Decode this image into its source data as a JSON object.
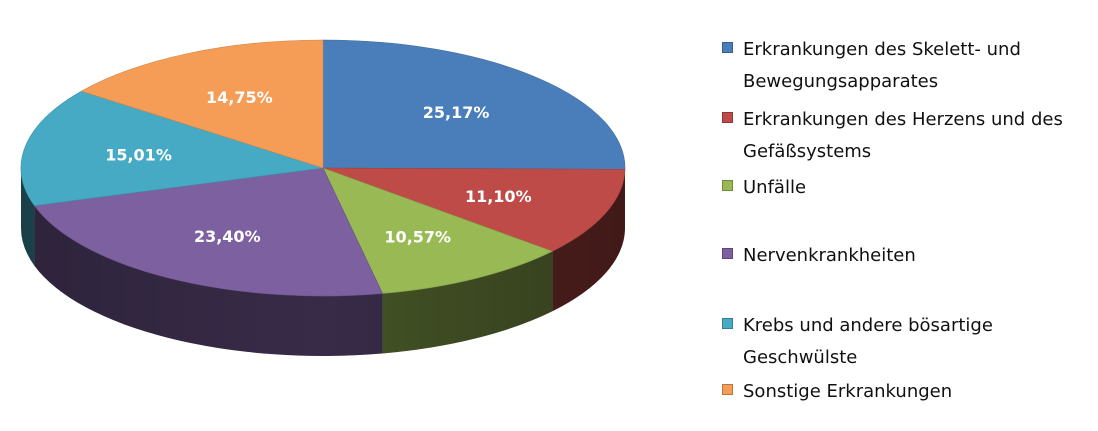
{
  "chart_data": {
    "type": "pie",
    "style": "3d",
    "categories": [
      "Erkrankungen des Skelett- und Bewegungsapparates",
      "Erkrankungen des Herzens und des Gefäßsystems",
      "Unfälle",
      "Nervenkrankheiten",
      "Krebs und andere bösartige Geschwülste",
      "Sonstige Erkrankungen"
    ],
    "values": [
      25.17,
      11.1,
      10.57,
      23.4,
      15.01,
      14.75
    ],
    "value_labels": [
      "25,17%",
      "11,10%",
      "10,57%",
      "23,40%",
      "15,01%",
      "14,75%"
    ],
    "colors": [
      "#4a7ebb",
      "#be4b48",
      "#98b954",
      "#7d60a0",
      "#46aac5",
      "#f59d56"
    ],
    "legend_position": "right"
  },
  "legend": {
    "items": [
      {
        "line1": "Erkrankungen des Skelett- und",
        "line2": "Bewegungsapparates",
        "color": "#4a7ebb"
      },
      {
        "line1": "Erkrankungen des Herzens und des",
        "line2": "Gefäßsystems",
        "color": "#be4b48"
      },
      {
        "line1": "Unfälle",
        "line2": "",
        "color": "#98b954"
      },
      {
        "line1": "Nervenkrankheiten",
        "line2": "",
        "color": "#7d60a0"
      },
      {
        "line1": "Krebs und andere bösartige",
        "line2": "Geschwülste",
        "color": "#46aac5"
      },
      {
        "line1": "Sonstige Erkrankungen",
        "line2": "",
        "color": "#f59d56"
      }
    ]
  }
}
